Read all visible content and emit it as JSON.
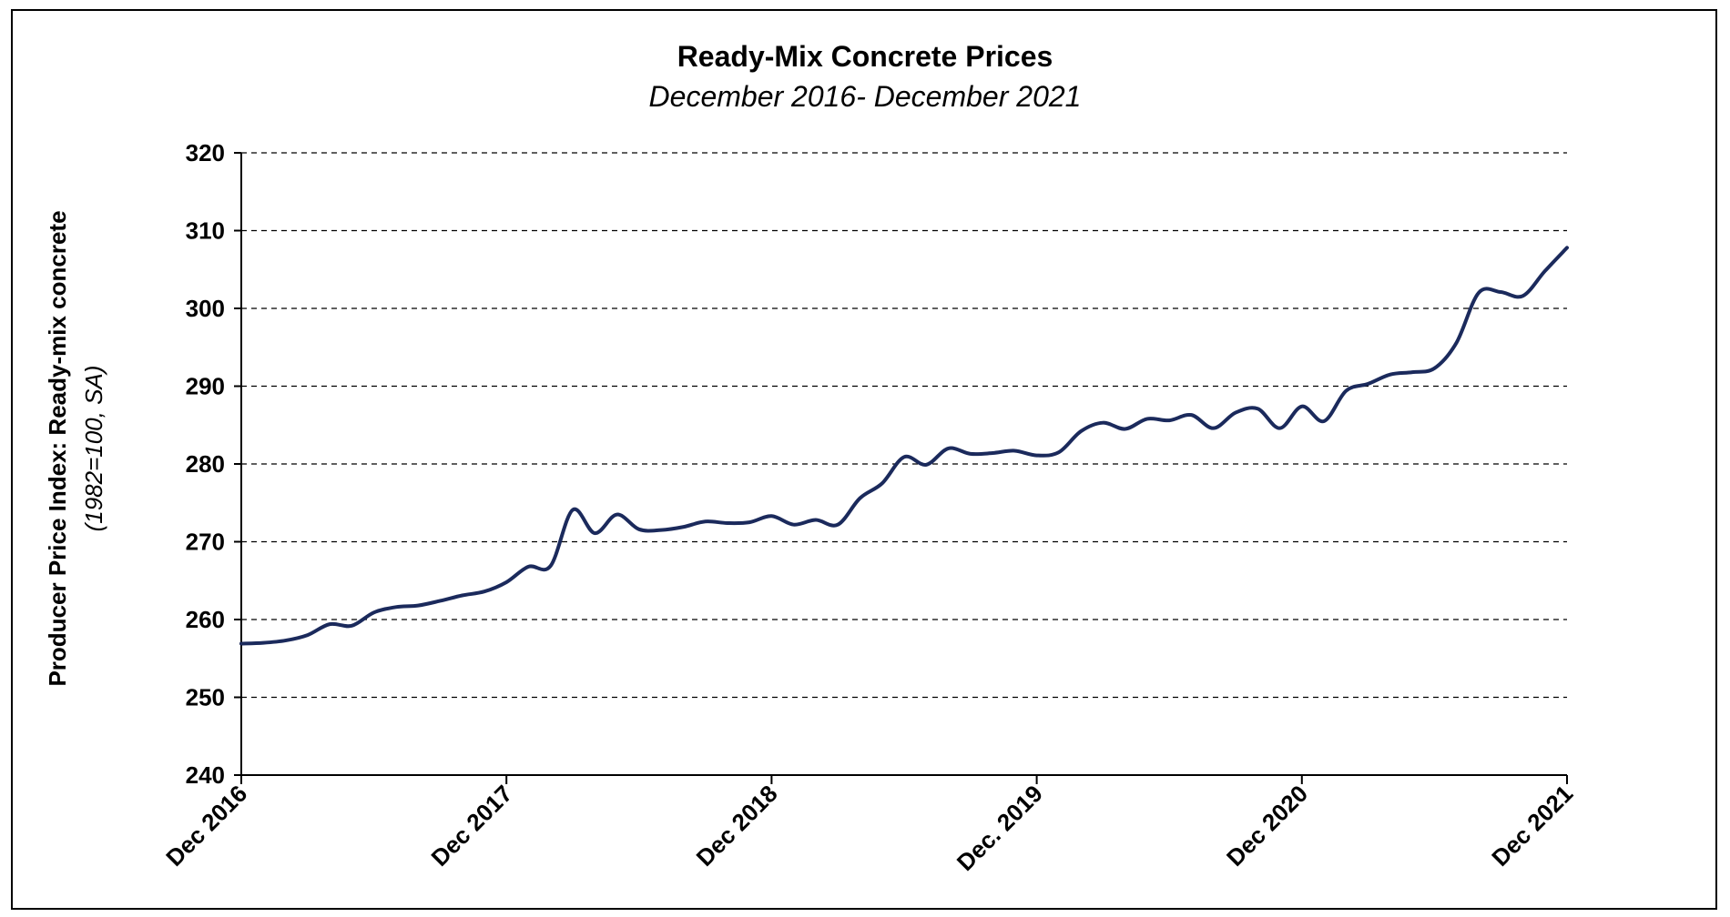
{
  "chart_data": {
    "type": "line",
    "title": "Ready-Mix Concrete Prices",
    "subtitle": "December 2016- December 2021",
    "ylabel": "Producer Price Index: Ready-mix concrete",
    "ylabel_note": "(1982=100, SA)",
    "ylim": [
      240,
      320
    ],
    "yticks": [
      240,
      250,
      260,
      270,
      280,
      290,
      300,
      310,
      320
    ],
    "grid": "horizontal dashed",
    "x_tick_labels": [
      "Dec 2016",
      "Dec 2017",
      "Dec 2018",
      "Dec. 2019",
      "Dec 2020",
      "Dec 2021"
    ],
    "x_tick_dates": [
      "2016-12",
      "2017-12",
      "2018-12",
      "2019-12",
      "2020-12",
      "2021-12"
    ],
    "line_color": "#1b2a5c",
    "series": [
      {
        "x": [
          "2016-12",
          "2017-01",
          "2017-02",
          "2017-03",
          "2017-04",
          "2017-05",
          "2017-06",
          "2017-07",
          "2017-08",
          "2017-09",
          "2017-10",
          "2017-11",
          "2017-12",
          "2018-01",
          "2018-02",
          "2018-03",
          "2018-04",
          "2018-05",
          "2018-06",
          "2018-07",
          "2018-08",
          "2018-09",
          "2018-10",
          "2018-11",
          "2018-12",
          "2019-01",
          "2019-02",
          "2019-03",
          "2019-04",
          "2019-05",
          "2019-06",
          "2019-07",
          "2019-08",
          "2019-09",
          "2019-10",
          "2019-11",
          "2019-12",
          "2020-01",
          "2020-02",
          "2020-03",
          "2020-04",
          "2020-05",
          "2020-06",
          "2020-07",
          "2020-08",
          "2020-09",
          "2020-10",
          "2020-11",
          "2020-12",
          "2021-01",
          "2021-02",
          "2021-03",
          "2021-04",
          "2021-05",
          "2021-06",
          "2021-07",
          "2021-08",
          "2021-09",
          "2021-10",
          "2021-11",
          "2021-12"
        ],
        "values": [
          256.9,
          257.0,
          257.3,
          258.0,
          259.4,
          259.2,
          260.9,
          261.6,
          261.8,
          262.4,
          263.1,
          263.6,
          264.8,
          266.8,
          266.9,
          274.1,
          271.1,
          273.5,
          271.6,
          271.5,
          271.9,
          272.6,
          272.4,
          272.5,
          273.3,
          272.2,
          272.8,
          272.2,
          275.6,
          277.5,
          280.9,
          279.9,
          282.0,
          281.3,
          281.4,
          281.7,
          281.1,
          281.5,
          284.2,
          285.3,
          284.5,
          285.8,
          285.6,
          286.3,
          284.6,
          286.6,
          287.1,
          284.6,
          287.4,
          285.5,
          289.4,
          290.3,
          291.5,
          291.8,
          292.3,
          295.6,
          302.0,
          302.1,
          301.6,
          304.8,
          307.8
        ]
      }
    ]
  }
}
